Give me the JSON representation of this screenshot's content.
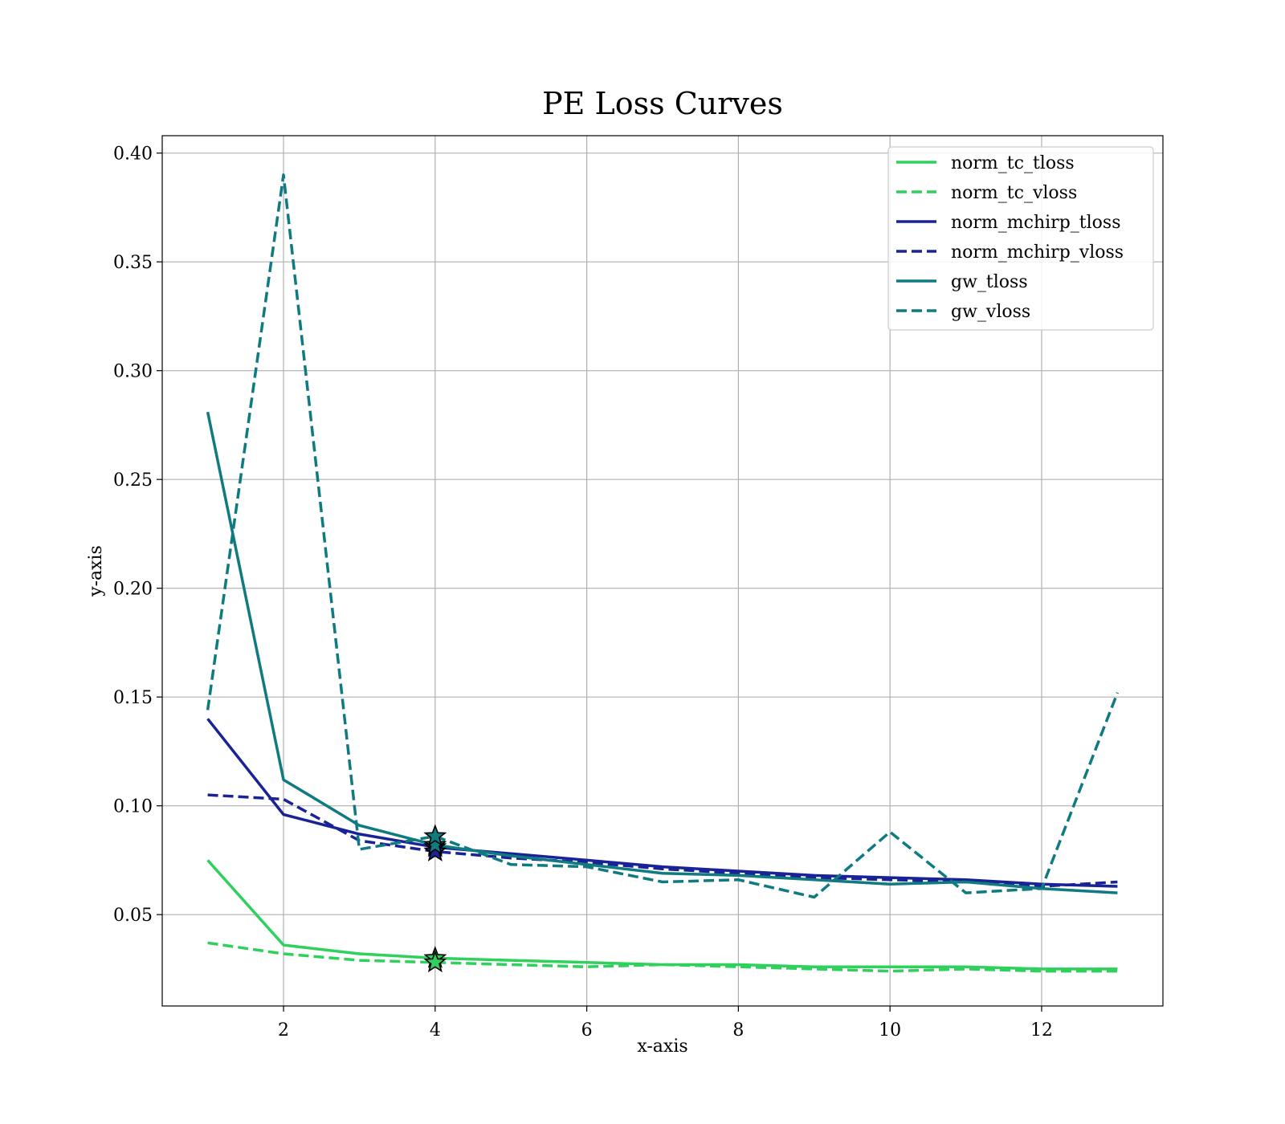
{
  "chart_data": {
    "type": "line",
    "title": "PE Loss Curves",
    "xlabel": "x-axis",
    "ylabel": "y-axis",
    "xlim": [
      0.4,
      13.6
    ],
    "ylim": [
      0.008,
      0.408
    ],
    "xticks": [
      2,
      4,
      6,
      8,
      10,
      12
    ],
    "yticks": [
      0.05,
      0.1,
      0.15,
      0.2,
      0.25,
      0.3,
      0.35,
      0.4
    ],
    "xtick_labels": [
      "2",
      "4",
      "6",
      "8",
      "10",
      "12"
    ],
    "ytick_labels": [
      "0.05",
      "0.10",
      "0.15",
      "0.20",
      "0.25",
      "0.30",
      "0.35",
      "0.40"
    ],
    "grid": true,
    "legend_position": "top-right",
    "x": [
      1,
      2,
      3,
      4,
      5,
      6,
      7,
      8,
      9,
      10,
      11,
      12,
      13
    ],
    "series": [
      {
        "name": "norm_tc_tloss",
        "color": "#2fd15c",
        "dash": "solid",
        "values": [
          0.075,
          0.036,
          0.032,
          0.03,
          0.029,
          0.028,
          0.027,
          0.027,
          0.026,
          0.026,
          0.026,
          0.025,
          0.025
        ]
      },
      {
        "name": "norm_tc_vloss",
        "color": "#2fd15c",
        "dash": "dashed",
        "values": [
          0.037,
          0.032,
          0.029,
          0.028,
          0.027,
          0.026,
          0.027,
          0.026,
          0.025,
          0.024,
          0.025,
          0.024,
          0.024
        ]
      },
      {
        "name": "norm_mchirp_tloss",
        "color": "#1a2396",
        "dash": "solid",
        "values": [
          0.14,
          0.096,
          0.087,
          0.081,
          0.078,
          0.075,
          0.072,
          0.07,
          0.068,
          0.067,
          0.066,
          0.064,
          0.063
        ]
      },
      {
        "name": "norm_mchirp_vloss",
        "color": "#1a2396",
        "dash": "dashed",
        "values": [
          0.105,
          0.103,
          0.084,
          0.079,
          0.076,
          0.074,
          0.071,
          0.069,
          0.067,
          0.066,
          0.065,
          0.063,
          0.065
        ]
      },
      {
        "name": "gw_tloss",
        "color": "#0f7a80",
        "dash": "solid",
        "values": [
          0.281,
          0.112,
          0.091,
          0.082,
          0.077,
          0.073,
          0.069,
          0.068,
          0.066,
          0.064,
          0.065,
          0.062,
          0.06
        ]
      },
      {
        "name": "gw_vloss",
        "color": "#0f7a80",
        "dash": "dashed",
        "values": [
          0.144,
          0.39,
          0.08,
          0.086,
          0.073,
          0.072,
          0.065,
          0.066,
          0.058,
          0.088,
          0.06,
          0.062,
          0.152
        ]
      }
    ],
    "markers": [
      {
        "series": "norm_tc_tloss",
        "marker": "star",
        "x": 4,
        "y": 0.03
      },
      {
        "series": "norm_tc_vloss",
        "marker": "star",
        "x": 4,
        "y": 0.028
      },
      {
        "series": "norm_mchirp_tloss",
        "marker": "star",
        "x": 4,
        "y": 0.081
      },
      {
        "series": "norm_mchirp_vloss",
        "marker": "star",
        "x": 4,
        "y": 0.079
      },
      {
        "series": "gw_tloss",
        "marker": "star",
        "x": 4,
        "y": 0.082
      },
      {
        "series": "gw_vloss",
        "marker": "star",
        "x": 4,
        "y": 0.086
      }
    ]
  }
}
